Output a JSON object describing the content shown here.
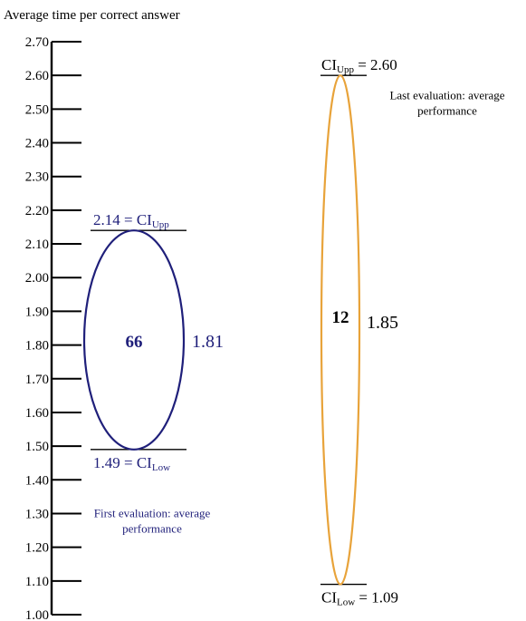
{
  "chart_data": {
    "type": "confidence-ellipse",
    "title": "Average time per correct answer",
    "ylim": [
      1.0,
      2.7
    ],
    "yticks": [
      "1.00",
      "1.10",
      "1.20",
      "1.30",
      "1.40",
      "1.50",
      "1.60",
      "1.70",
      "1.80",
      "1.90",
      "2.00",
      "2.10",
      "2.20",
      "2.30",
      "2.40",
      "2.50",
      "2.60",
      "2.70"
    ],
    "series": [
      {
        "mean": 1.81,
        "ci_upp": 2.14,
        "ci_low": 1.49,
        "n": 66,
        "mean_label": "1.81",
        "count_label": "66",
        "upp_label": "2.14 = CI",
        "upp_sub": "Upp",
        "low_label": "1.49 = CI",
        "low_sub": "Low",
        "caption_1": "First evaluation: average",
        "caption_2": "performance",
        "color": "#1f1f7a"
      },
      {
        "mean": 1.85,
        "ci_upp": 2.6,
        "ci_low": 1.09,
        "n": 12,
        "mean_label": "1.85",
        "count_label": "12",
        "upp_prefix": "CI",
        "upp_sub": "Upp",
        "upp_value": " = 2.60",
        "low_prefix": "CI",
        "low_sub": "Low",
        "low_value": " = 1.09",
        "caption_1": "Last evaluation: average",
        "caption_2": "performance",
        "color": "#e8a33a"
      }
    ]
  }
}
